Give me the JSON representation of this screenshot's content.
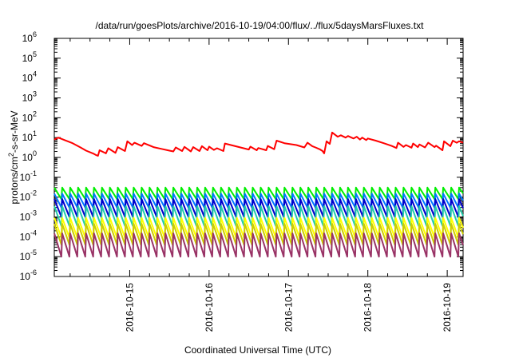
{
  "chart_data": {
    "type": "line",
    "title": "/data/run/goesPlots/archive/2016-10-19/04:00/flux/../flux/5daysMarsFluxes.txt",
    "xlabel": "Coordinated Universal Time (UTC)",
    "ylabel": {
      "prefix": "protons/cm",
      "sup": "2",
      "suffix": "-s-sr-MeV"
    },
    "yscale": "log",
    "ylim_exp": [
      -6,
      6
    ],
    "xlim_days": [
      -0.95,
      4.2
    ],
    "x_ticks": [
      "2016-10-15",
      "2016-10-16",
      "2016-10-17",
      "2016-10-18",
      "2016-10-19"
    ],
    "y_ticks": [
      -6,
      -5,
      -4,
      -3,
      -2,
      -1,
      0,
      1,
      2,
      3,
      4,
      5,
      6
    ],
    "grid": false,
    "legend": "none",
    "series": [
      {
        "color": "#ff0000",
        "points": [
          [
            -0.95,
            8
          ],
          [
            -0.9,
            10
          ],
          [
            -0.82,
            7.5
          ],
          [
            -0.72,
            5.2
          ],
          [
            -0.62,
            3.2
          ],
          [
            -0.55,
            2.2
          ],
          [
            -0.48,
            1.7
          ],
          [
            -0.45,
            1.5
          ],
          [
            -0.42,
            1.3
          ],
          [
            -0.4,
            1.2
          ],
          [
            -0.38,
            2.3
          ],
          [
            -0.3,
            1.6
          ],
          [
            -0.27,
            2.9
          ],
          [
            -0.18,
            1.7
          ],
          [
            -0.15,
            3.3
          ],
          [
            -0.06,
            2.1
          ],
          [
            -0.03,
            6.5
          ],
          [
            0.03,
            4.2
          ],
          [
            0.06,
            5.5
          ],
          [
            0.15,
            3.8
          ],
          [
            0.18,
            5.2
          ],
          [
            0.3,
            3.3
          ],
          [
            0.4,
            2.7
          ],
          [
            0.5,
            2.2
          ],
          [
            0.55,
            2.0
          ],
          [
            0.58,
            3.2
          ],
          [
            0.66,
            2.1
          ],
          [
            0.69,
            3.4
          ],
          [
            0.77,
            2.0
          ],
          [
            0.8,
            3.3
          ],
          [
            0.88,
            2.1
          ],
          [
            0.91,
            3.7
          ],
          [
            0.98,
            2.3
          ],
          [
            1.0,
            3.5
          ],
          [
            1.06,
            2.4
          ],
          [
            1.1,
            2.9
          ],
          [
            1.18,
            2.1
          ],
          [
            1.2,
            5.0
          ],
          [
            1.5,
            2.5
          ],
          [
            1.52,
            3.5
          ],
          [
            1.6,
            2.3
          ],
          [
            1.62,
            3.0
          ],
          [
            1.72,
            2.3
          ],
          [
            1.74,
            3.8
          ],
          [
            1.82,
            2.6
          ],
          [
            1.85,
            7.0
          ],
          [
            1.95,
            5.2
          ],
          [
            2.1,
            4.2
          ],
          [
            2.2,
            3.2
          ],
          [
            2.24,
            5.5
          ],
          [
            2.3,
            3.7
          ],
          [
            2.34,
            3.2
          ],
          [
            2.4,
            2.5
          ],
          [
            2.43,
            2.1
          ],
          [
            2.45,
            1.6
          ],
          [
            2.48,
            6.5
          ],
          [
            2.52,
            4.8
          ],
          [
            2.55,
            18
          ],
          [
            2.62,
            11
          ],
          [
            2.66,
            13
          ],
          [
            2.72,
            10
          ],
          [
            2.75,
            12
          ],
          [
            2.82,
            9.0
          ],
          [
            2.86,
            11
          ],
          [
            2.9,
            8.0
          ],
          [
            2.93,
            10
          ],
          [
            2.98,
            7.5
          ],
          [
            3.0,
            9.0
          ],
          [
            3.1,
            7.0
          ],
          [
            3.2,
            5.2
          ],
          [
            3.3,
            3.8
          ],
          [
            3.36,
            3.0
          ],
          [
            3.38,
            5.5
          ],
          [
            3.45,
            3.4
          ],
          [
            3.48,
            4.2
          ],
          [
            3.55,
            3.1
          ],
          [
            3.57,
            5.0
          ],
          [
            3.63,
            3.3
          ],
          [
            3.65,
            4.5
          ],
          [
            3.72,
            3.2
          ],
          [
            3.76,
            5.5
          ],
          [
            3.84,
            3.3
          ],
          [
            3.86,
            3.9
          ],
          [
            3.94,
            2.3
          ],
          [
            3.96,
            6.5
          ],
          [
            4.04,
            3.7
          ],
          [
            4.07,
            7.0
          ],
          [
            4.12,
            5.5
          ],
          [
            4.15,
            6.5
          ],
          [
            4.2,
            5.5
          ]
        ]
      },
      {
        "color": "#00ee00",
        "peak": 0.03,
        "trough": 0.008
      },
      {
        "color": "#0077ff",
        "peak": 0.015,
        "trough": 0.003
      },
      {
        "color": "#0000cc",
        "peak": 0.008,
        "trough": 0.001
      },
      {
        "color": "#22ccaa",
        "peak": 0.0035,
        "trough": 0.00035
      },
      {
        "color": "#ffff00",
        "peak": 0.0009,
        "trough": 9e-05
      },
      {
        "color": "#cccc00",
        "peak": 0.00045,
        "trough": 4e-05
      },
      {
        "color": "#993366",
        "peak": 0.00015,
        "trough": 1e-05
      }
    ],
    "sawtooth": {
      "resets": [
        -0.95,
        -0.85,
        -0.75,
        -0.65,
        -0.55,
        -0.45,
        -0.35,
        -0.25,
        -0.15,
        -0.05,
        0.05,
        0.15,
        0.25,
        0.35,
        0.45,
        0.55,
        0.65,
        0.75,
        0.85,
        0.95,
        1.05,
        1.15,
        1.25,
        1.35,
        1.45,
        1.55,
        1.65,
        1.75,
        1.85,
        1.95,
        2.05,
        2.15,
        2.25,
        2.35,
        2.45,
        2.55,
        2.65,
        2.75,
        2.85,
        2.95,
        3.05,
        3.15,
        3.25,
        3.35,
        3.45,
        3.55,
        3.65,
        3.75,
        3.85,
        3.95,
        4.05,
        4.15
      ],
      "end": 4.2
    }
  }
}
